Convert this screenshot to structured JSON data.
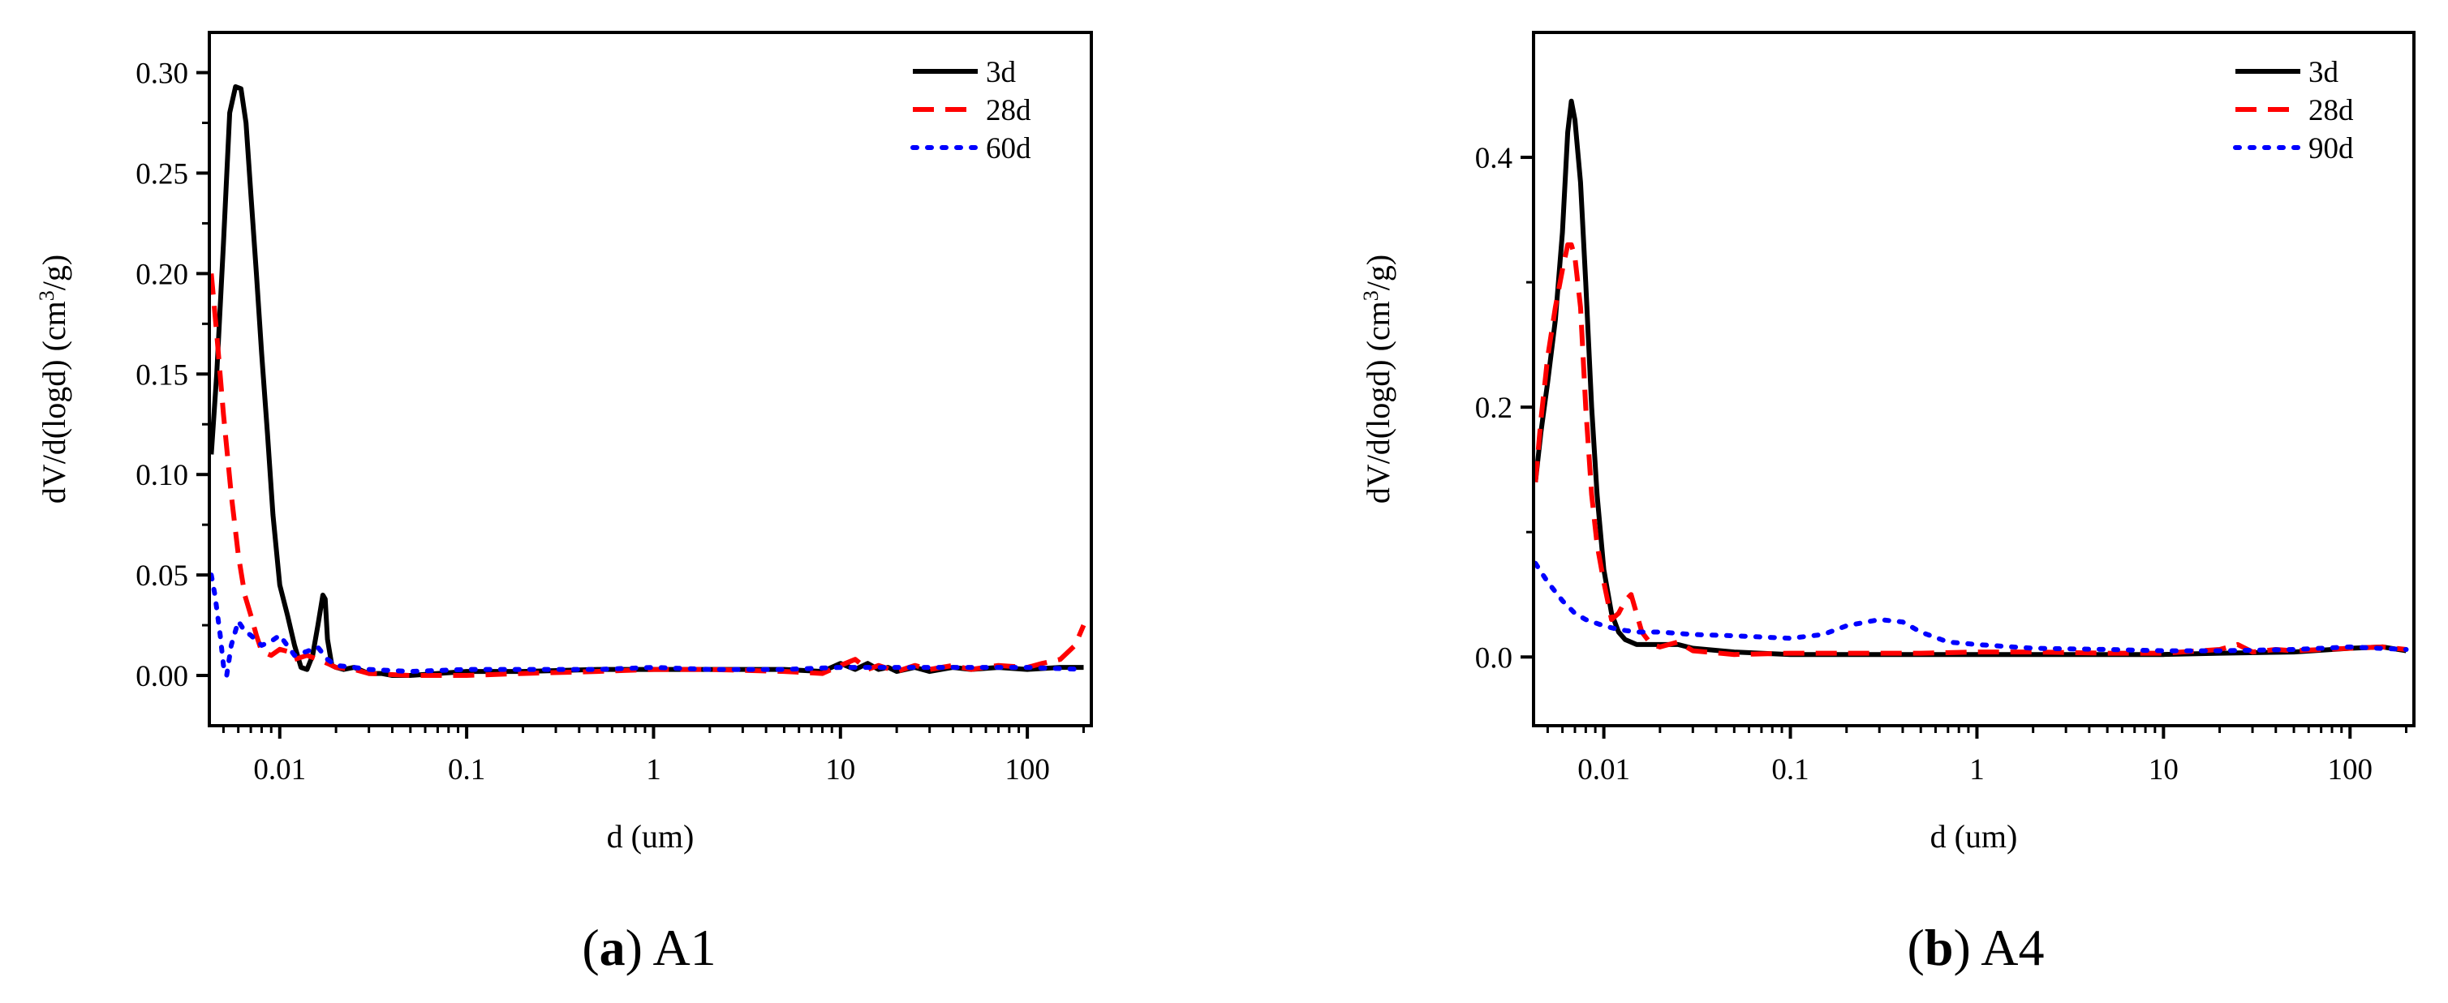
{
  "chart_data": [
    {
      "type": "line",
      "panel_letter": "a",
      "panel_name": "A1",
      "xlabel": "d (um)",
      "ylabel": "dV/d(logd) (cm3/g)",
      "ylabel_parts": {
        "pre": "dV/d(logd) (cm",
        "sup": "3",
        "post": "/g)"
      },
      "x_scale": "log",
      "xlim": [
        0.0042,
        220
      ],
      "ylim": [
        -0.025,
        0.32
      ],
      "x_ticks": [
        0.01,
        0.1,
        1,
        10,
        100
      ],
      "x_tick_labels": [
        "0.01",
        "0.1",
        "1",
        "10",
        "100"
      ],
      "y_ticks": [
        0.0,
        0.05,
        0.1,
        0.15,
        0.2,
        0.25,
        0.3
      ],
      "y_tick_labels": [
        "0.00",
        "0.05",
        "0.10",
        "0.15",
        "0.20",
        "0.25",
        "0.30"
      ],
      "legend_position": "top-right",
      "series": [
        {
          "name": "3d",
          "color": "#000000",
          "style": "solid",
          "x": [
            0.0043,
            0.0046,
            0.005,
            0.0054,
            0.0058,
            0.0062,
            0.0066,
            0.007,
            0.0075,
            0.008,
            0.0086,
            0.0092,
            0.01,
            0.011,
            0.012,
            0.013,
            0.014,
            0.015,
            0.016,
            0.017,
            0.0175,
            0.018,
            0.019,
            0.02,
            0.022,
            0.025,
            0.03,
            0.035,
            0.04,
            0.05,
            0.07,
            0.1,
            0.2,
            0.5,
            1,
            2,
            5,
            8,
            10,
            12,
            14,
            16,
            18,
            20,
            25,
            30,
            40,
            50,
            70,
            100,
            150,
            200
          ],
          "y": [
            0.11,
            0.15,
            0.215,
            0.28,
            0.293,
            0.292,
            0.275,
            0.24,
            0.2,
            0.16,
            0.12,
            0.08,
            0.045,
            0.03,
            0.015,
            0.004,
            0.003,
            0.01,
            0.025,
            0.04,
            0.038,
            0.018,
            0.005,
            0.004,
            0.003,
            0.004,
            0.001,
            0.001,
            0.0,
            0.0,
            0.001,
            0.002,
            0.002,
            0.003,
            0.003,
            0.003,
            0.003,
            0.002,
            0.006,
            0.003,
            0.006,
            0.003,
            0.004,
            0.002,
            0.004,
            0.002,
            0.004,
            0.003,
            0.004,
            0.003,
            0.004,
            0.004
          ]
        },
        {
          "name": "28d",
          "color": "#ff0000",
          "style": "dashed",
          "x": [
            0.0043,
            0.0046,
            0.005,
            0.0055,
            0.006,
            0.0065,
            0.007,
            0.0075,
            0.008,
            0.009,
            0.01,
            0.011,
            0.012,
            0.014,
            0.016,
            0.018,
            0.02,
            0.025,
            0.03,
            0.05,
            0.1,
            0.2,
            0.5,
            1,
            2,
            5,
            8,
            10,
            12,
            14,
            16,
            20,
            25,
            30,
            40,
            50,
            70,
            100,
            120,
            150,
            180,
            200
          ],
          "y": [
            0.2,
            0.17,
            0.13,
            0.09,
            0.06,
            0.04,
            0.03,
            0.02,
            0.012,
            0.01,
            0.013,
            0.012,
            0.008,
            0.01,
            0.008,
            0.006,
            0.004,
            0.003,
            0.001,
            0.0,
            0.0,
            0.001,
            0.002,
            0.003,
            0.003,
            0.002,
            0.001,
            0.005,
            0.008,
            0.003,
            0.005,
            0.002,
            0.005,
            0.003,
            0.005,
            0.003,
            0.005,
            0.004,
            0.006,
            0.008,
            0.015,
            0.025
          ]
        },
        {
          "name": "60d",
          "color": "#0000ff",
          "style": "dotted",
          "x": [
            0.0043,
            0.0045,
            0.0048,
            0.005,
            0.0052,
            0.0055,
            0.006,
            0.0065,
            0.007,
            0.008,
            0.009,
            0.01,
            0.012,
            0.014,
            0.016,
            0.018,
            0.02,
            0.025,
            0.03,
            0.05,
            0.1,
            0.2,
            0.5,
            1,
            2,
            5,
            10,
            20,
            50,
            100,
            200
          ],
          "y": [
            0.05,
            0.04,
            0.02,
            0.005,
            0.0,
            0.015,
            0.027,
            0.022,
            0.02,
            0.015,
            0.017,
            0.02,
            0.01,
            0.012,
            0.014,
            0.008,
            0.005,
            0.004,
            0.003,
            0.002,
            0.003,
            0.003,
            0.003,
            0.004,
            0.003,
            0.003,
            0.004,
            0.004,
            0.004,
            0.004,
            0.003
          ]
        }
      ]
    },
    {
      "type": "line",
      "panel_letter": "b",
      "panel_name": "A4",
      "xlabel": "d (um)",
      "ylabel": "dV/d(logd) (cm3/g)",
      "ylabel_parts": {
        "pre": "dV/d(logd) (cm",
        "sup": "3",
        "post": "/g)"
      },
      "x_scale": "log",
      "xlim": [
        0.0042,
        220
      ],
      "ylim": [
        -0.055,
        0.5
      ],
      "x_ticks": [
        0.01,
        0.1,
        1,
        10,
        100
      ],
      "x_tick_labels": [
        "0.01",
        "0.1",
        "1",
        "10",
        "100"
      ],
      "y_ticks": [
        0.0,
        0.2,
        0.4
      ],
      "y_tick_labels": [
        "0.0",
        "0.2",
        "0.4"
      ],
      "legend_position": "top-right",
      "series": [
        {
          "name": "3d",
          "color": "#000000",
          "style": "solid",
          "x": [
            0.0043,
            0.0046,
            0.005,
            0.0055,
            0.006,
            0.0064,
            0.0067,
            0.007,
            0.0075,
            0.008,
            0.0086,
            0.0092,
            0.01,
            0.011,
            0.012,
            0.013,
            0.015,
            0.018,
            0.02,
            0.025,
            0.03,
            0.05,
            0.1,
            0.2,
            0.5,
            1,
            2,
            5,
            10,
            20,
            50,
            100,
            150,
            200
          ],
          "y": [
            0.14,
            0.18,
            0.22,
            0.27,
            0.34,
            0.42,
            0.445,
            0.43,
            0.38,
            0.3,
            0.2,
            0.13,
            0.07,
            0.035,
            0.02,
            0.014,
            0.01,
            0.01,
            0.01,
            0.01,
            0.007,
            0.004,
            0.002,
            0.002,
            0.002,
            0.002,
            0.002,
            0.002,
            0.002,
            0.003,
            0.004,
            0.007,
            0.008,
            0.005
          ]
        },
        {
          "name": "28d",
          "color": "#ff0000",
          "style": "dashed",
          "x": [
            0.0043,
            0.0046,
            0.005,
            0.0055,
            0.006,
            0.0064,
            0.0067,
            0.007,
            0.0075,
            0.008,
            0.0086,
            0.0092,
            0.01,
            0.011,
            0.012,
            0.013,
            0.014,
            0.016,
            0.018,
            0.02,
            0.025,
            0.03,
            0.05,
            0.1,
            0.2,
            0.5,
            1,
            2,
            5,
            10,
            20,
            25,
            30,
            40,
            50,
            100,
            150,
            200
          ],
          "y": [
            0.14,
            0.19,
            0.24,
            0.28,
            0.31,
            0.33,
            0.33,
            0.32,
            0.28,
            0.2,
            0.13,
            0.09,
            0.06,
            0.03,
            0.035,
            0.045,
            0.05,
            0.02,
            0.01,
            0.008,
            0.012,
            0.005,
            0.002,
            0.003,
            0.003,
            0.003,
            0.004,
            0.004,
            0.003,
            0.003,
            0.006,
            0.01,
            0.004,
            0.006,
            0.005,
            0.007,
            0.008,
            0.006
          ]
        },
        {
          "name": "90d",
          "color": "#0000ff",
          "style": "dotted",
          "x": [
            0.0043,
            0.005,
            0.006,
            0.007,
            0.008,
            0.01,
            0.012,
            0.015,
            0.02,
            0.03,
            0.05,
            0.1,
            0.15,
            0.2,
            0.3,
            0.4,
            0.5,
            0.7,
            1,
            2,
            5,
            10,
            20,
            50,
            100,
            200
          ],
          "y": [
            0.075,
            0.06,
            0.045,
            0.035,
            0.03,
            0.025,
            0.022,
            0.02,
            0.02,
            0.018,
            0.017,
            0.015,
            0.018,
            0.025,
            0.03,
            0.028,
            0.02,
            0.012,
            0.01,
            0.007,
            0.006,
            0.005,
            0.005,
            0.006,
            0.008,
            0.006
          ]
        }
      ]
    }
  ]
}
